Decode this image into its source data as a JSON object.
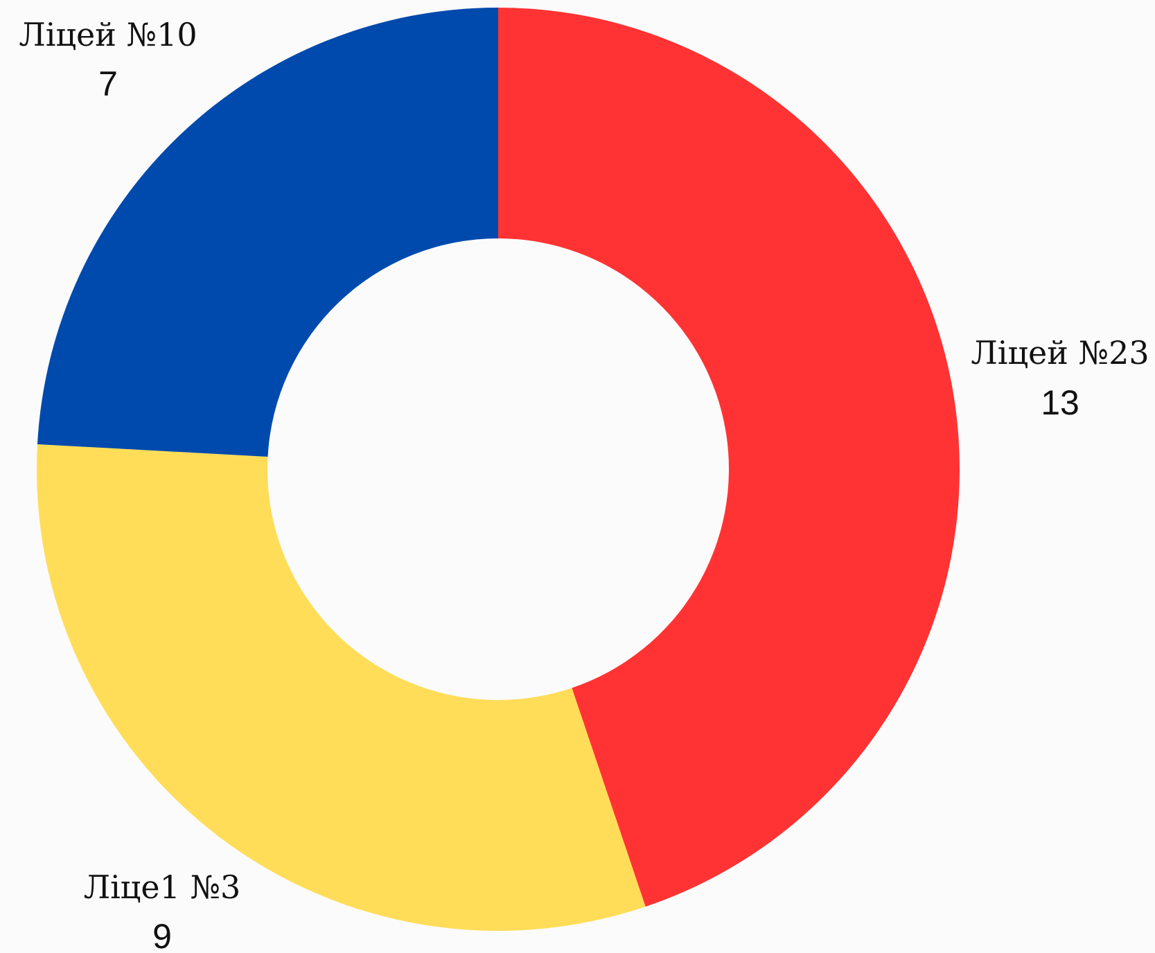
{
  "chart_data": {
    "type": "pie",
    "donut": true,
    "title": "",
    "start": "top",
    "direction": "clockwise",
    "slices": [
      {
        "label": "Ліцей №23",
        "value": 13,
        "display_value": "13",
        "color": "#ff3333"
      },
      {
        "label": "Ліце1 №3",
        "value": 9,
        "display_value": "9",
        "color": "#ffdd58"
      },
      {
        "label": "Ліцей №10",
        "value": 7,
        "display_value": "7",
        "color": "#004aad"
      }
    ]
  }
}
